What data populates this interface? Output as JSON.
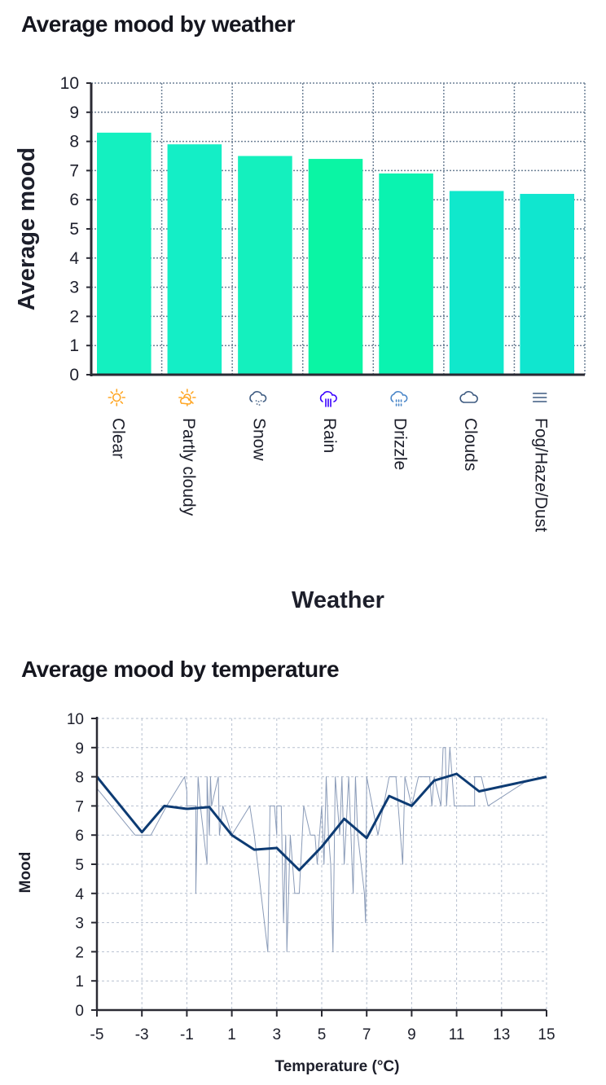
{
  "chart_data": [
    {
      "type": "bar",
      "title": "Average mood by weather",
      "xlabel": "Weather",
      "ylabel": "Average mood",
      "ylim": [
        0,
        10
      ],
      "yticks": [
        0,
        1,
        2,
        3,
        4,
        5,
        6,
        7,
        8,
        9,
        10
      ],
      "grid": true,
      "categories": [
        "Clear",
        "Partly cloudy",
        "Snow",
        "Rain",
        "Drizzle",
        "Clouds",
        "Fog/Haze/Dust"
      ],
      "icons": [
        "sun-icon",
        "partly-cloudy-icon",
        "snow-icon",
        "rain-icon",
        "drizzle-icon",
        "cloud-icon",
        "fog-icon"
      ],
      "icon_colors": [
        "#ffa726",
        "#ffa726",
        "#3d5a80",
        "#3a00ff",
        "#4a86c8",
        "#3d5a80",
        "#3d5a80"
      ],
      "values": [
        8.3,
        7.9,
        7.5,
        7.4,
        6.9,
        6.3,
        6.2
      ],
      "bar_colors": [
        "#14f0c0",
        "#14eec6",
        "#14f0be",
        "#0af5a4",
        "#0af3b0",
        "#10e8cc",
        "#10e6cf"
      ]
    },
    {
      "type": "line",
      "title": "Average mood by temperature",
      "xlabel": "Temperature (°C)",
      "ylabel": "Mood",
      "xlim": [
        -5,
        15
      ],
      "ylim": [
        0,
        10
      ],
      "xticks": [
        -5,
        -3,
        -1,
        1,
        3,
        5,
        7,
        9,
        11,
        13,
        15
      ],
      "yticks": [
        0,
        1,
        2,
        3,
        4,
        5,
        6,
        7,
        8,
        9,
        10
      ],
      "grid": true,
      "series": [
        {
          "color": "#8a9bb8",
          "points": [
            [
              -5,
              7.6
            ],
            [
              -3.3,
              6
            ],
            [
              -2.6,
              6
            ],
            [
              -1.9,
              7
            ],
            [
              -1.1,
              8
            ],
            [
              -1,
              7.5
            ],
            [
              -1,
              7
            ],
            [
              -0.6,
              7
            ],
            [
              -0.6,
              4
            ],
            [
              -0.5,
              8
            ],
            [
              -0.4,
              7
            ],
            [
              -0.1,
              5
            ],
            [
              -0.1,
              8
            ],
            [
              0,
              6
            ],
            [
              0.05,
              8
            ],
            [
              0.1,
              7
            ],
            [
              0.4,
              8
            ],
            [
              0.45,
              6
            ],
            [
              0.6,
              7
            ],
            [
              1,
              6
            ],
            [
              1.8,
              7
            ],
            [
              2,
              6
            ],
            [
              2.6,
              2
            ],
            [
              2.7,
              7
            ],
            [
              2.9,
              7
            ],
            [
              3,
              6
            ],
            [
              3,
              7
            ],
            [
              3.2,
              7
            ],
            [
              3.3,
              3
            ],
            [
              3.4,
              6
            ],
            [
              3.45,
              2
            ],
            [
              3.6,
              6
            ],
            [
              3.8,
              4
            ],
            [
              4,
              4
            ],
            [
              4.2,
              7
            ],
            [
              4.5,
              6
            ],
            [
              4.7,
              6
            ],
            [
              4.8,
              5
            ],
            [
              5,
              7
            ],
            [
              5.1,
              5
            ],
            [
              5.2,
              8
            ],
            [
              5.3,
              6
            ],
            [
              5.4,
              5
            ],
            [
              5.5,
              2
            ],
            [
              5.6,
              8
            ],
            [
              5.8,
              6
            ],
            [
              5.9,
              8
            ],
            [
              6,
              5
            ],
            [
              6.2,
              8
            ],
            [
              6.3,
              6
            ],
            [
              6.4,
              4
            ],
            [
              6.5,
              8
            ],
            [
              6.6,
              6
            ],
            [
              6.9,
              4
            ],
            [
              6.95,
              3
            ],
            [
              7,
              8
            ],
            [
              7.5,
              6
            ],
            [
              8,
              8
            ],
            [
              8.3,
              8
            ],
            [
              8.6,
              5
            ],
            [
              8.7,
              8
            ],
            [
              9,
              7
            ],
            [
              9.3,
              8
            ],
            [
              9.8,
              8
            ],
            [
              9.9,
              7
            ],
            [
              10,
              8
            ],
            [
              10.3,
              7
            ],
            [
              10.4,
              9
            ],
            [
              10.5,
              9
            ],
            [
              10.55,
              7
            ],
            [
              10.7,
              9
            ],
            [
              10.8,
              8
            ],
            [
              10.9,
              7
            ],
            [
              11.8,
              7
            ],
            [
              11.8,
              8
            ],
            [
              12.1,
              8
            ],
            [
              12.4,
              7
            ],
            [
              14,
              7.8
            ],
            [
              15,
              8
            ]
          ]
        },
        {
          "color": "#0d3b73",
          "points": [
            [
              -5,
              8.0
            ],
            [
              -3,
              6.1
            ],
            [
              -2,
              7.0
            ],
            [
              -1,
              6.9
            ],
            [
              0,
              6.96
            ],
            [
              1,
              6.0
            ],
            [
              2,
              5.5
            ],
            [
              3,
              5.56
            ],
            [
              4,
              4.8
            ],
            [
              5,
              5.6
            ],
            [
              6,
              6.56
            ],
            [
              7,
              5.9
            ],
            [
              8,
              7.34
            ],
            [
              9,
              7.0
            ],
            [
              10,
              7.87
            ],
            [
              11,
              8.1
            ],
            [
              12,
              7.5
            ],
            [
              15,
              8.0
            ]
          ]
        }
      ]
    }
  ]
}
